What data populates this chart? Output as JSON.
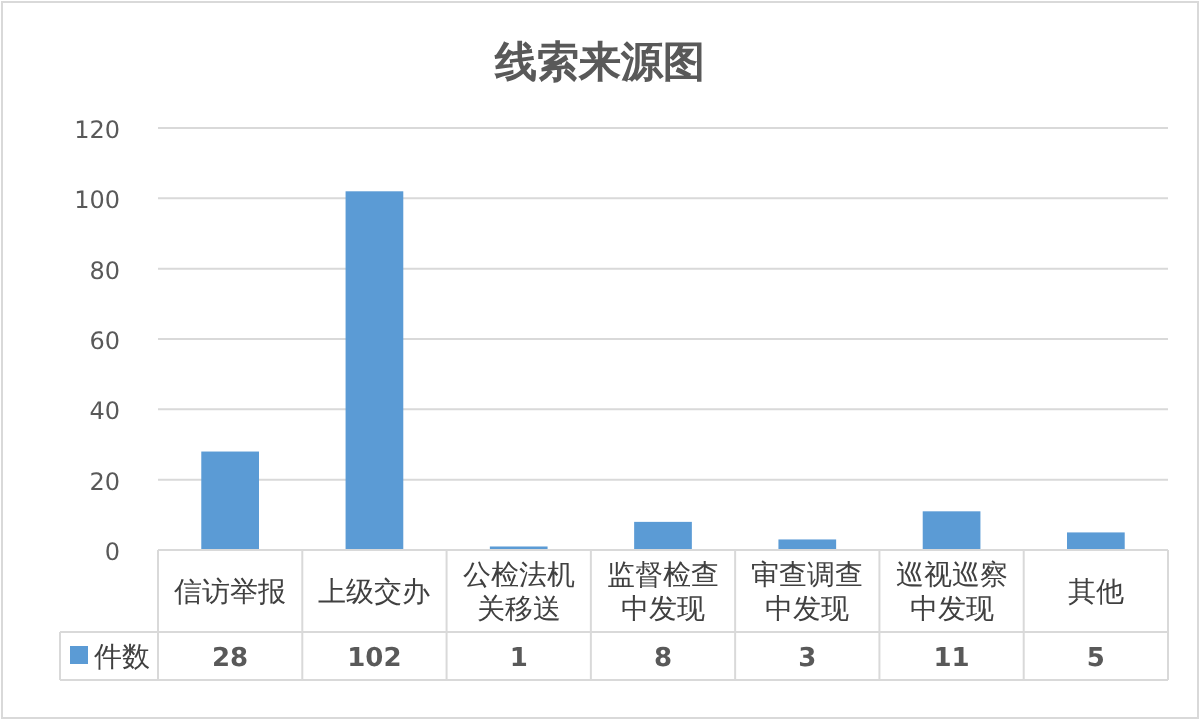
{
  "chart_data": {
    "type": "bar",
    "title": "线索来源图",
    "categories": [
      "信访举报",
      "上级交办",
      "公检法机关移送",
      "监督检查中发现",
      "审查调查中发现",
      "巡视巡察中发现",
      "其他"
    ],
    "series": [
      {
        "name": "件数",
        "color": "#5b9bd5",
        "values": [
          28,
          102,
          1,
          8,
          3,
          11,
          5
        ]
      }
    ],
    "ylim": [
      0,
      120
    ],
    "yticks": [
      0,
      20,
      40,
      60,
      80,
      100,
      120
    ],
    "grid": "y",
    "legend": "bottom",
    "data_labels": true
  }
}
